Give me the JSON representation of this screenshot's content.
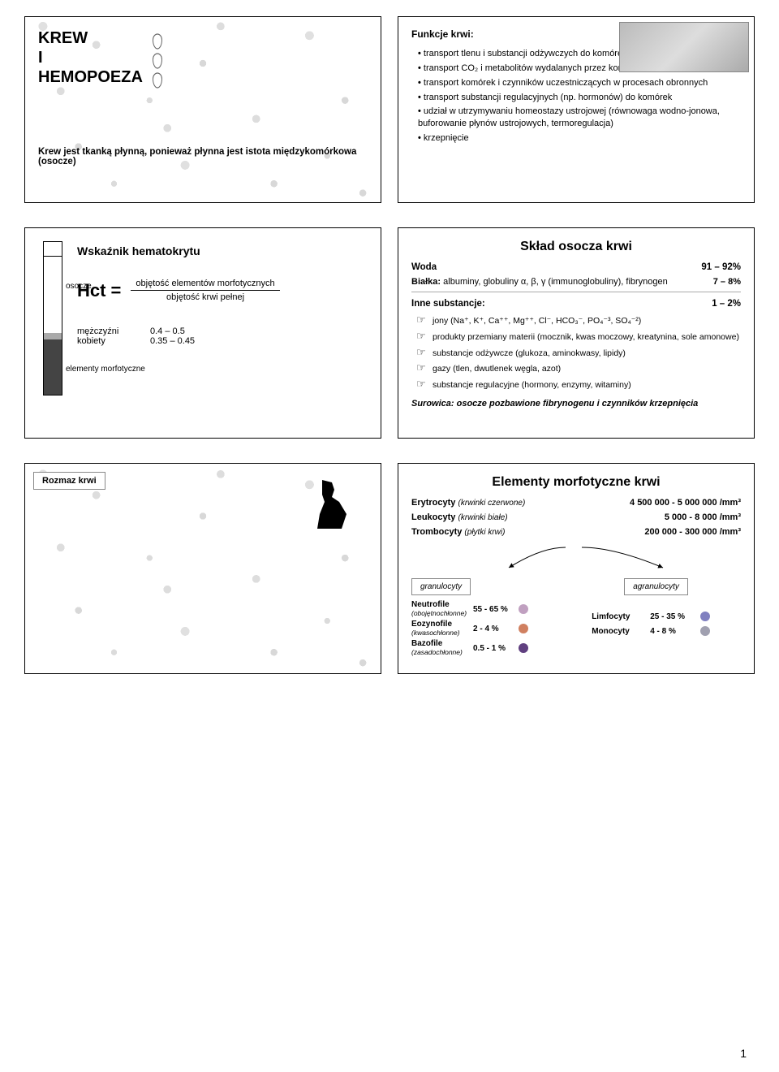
{
  "panel1": {
    "title": "KREW\nI\nHEMOPOEZA",
    "caption": "Krew jest tkanką płynną, ponieważ płynna jest istota międzykomórkowa (osocze)"
  },
  "panel2": {
    "heading": "Funkcje krwi:",
    "items": [
      "transport tlenu i substancji odżywczych do komórek",
      "transport CO₂ i metabolitów wydalanych przez komórki",
      "transport komórek i czynników uczestniczących w procesach obronnych",
      "transport substancji regulacyjnych (np. hormonów) do komórek",
      "udział w utrzymywaniu homeostazy ustrojowej (równowaga wodno-jonowa, buforowanie płynów ustrojowych, termoregulacja)",
      "krzepnięcie"
    ]
  },
  "panel3": {
    "hematocrit_label": "Wskaźnik hematokrytu",
    "osocze": "osocze",
    "hct": "Hct =",
    "numerator": "objętość elementów morfotycznych",
    "denominator": "objętość krwi pełnej",
    "elementy": "elementy morfotyczne",
    "male_label": "mężczyźni",
    "male_val": "0.4 – 0.5",
    "female_label": "kobiety",
    "female_val": "0.35 – 0.45"
  },
  "panel4": {
    "title": "Skład osocza krwi",
    "woda": "Woda",
    "woda_val": "91 – 92%",
    "bialka_label": "Białka:",
    "bialka_text": "albuminy, globuliny α, β, γ (immunoglobuliny), fibrynogen",
    "bialka_val": "7 – 8%",
    "inne_label": "Inne substancje:",
    "inne_val": "1 – 2%",
    "items": [
      "jony (Na⁺, K⁺, Ca⁺⁺, Mg⁺⁺, Cl⁻, HCO₃⁻, PO₄⁻³, SO₄⁻²)",
      "produkty przemiany materii (mocznik, kwas moczowy, kreatynina, sole amonowe)",
      "substancje odżywcze (glukoza, aminokwasy, lipidy)",
      "gazy (tlen, dwutlenek węgla, azot)",
      "substancje regulacyjne (hormony, enzymy, witaminy)"
    ],
    "surowica": "Surowica: osocze pozbawione fibrynogenu i czynników krzepnięcia"
  },
  "panel5": {
    "label": "Rozmaz krwi"
  },
  "panel6": {
    "title": "Elementy morfotyczne krwi",
    "rows": [
      {
        "name": "Erytrocyty",
        "note": "(krwinki czerwone)",
        "val": "4 500 000 - 5 000 000 /mm³"
      },
      {
        "name": "Leukocyty",
        "note": "(krwinki białe)",
        "val": "5 000 - 8 000 /mm³"
      },
      {
        "name": "Trombocyty",
        "note": "(płytki krwi)",
        "val": "200 000 - 300 000 /mm³"
      }
    ],
    "granulocyty": "granulocyty",
    "agranulocyty": "agranulocyty",
    "gran_rows": [
      {
        "name": "Neutrofile",
        "note": "(obojętnochłonne)",
        "val": "55 - 65 %",
        "color": "#c0a0c0"
      },
      {
        "name": "Eozynofile",
        "note": "(kwasochłonne)",
        "val": "2 - 4 %",
        "color": "#d08060"
      },
      {
        "name": "Bazofile",
        "note": "(zasadochłonne)",
        "val": "0.5 - 1 %",
        "color": "#604080"
      }
    ],
    "agran_rows": [
      {
        "name": "Limfocyty",
        "val": "25 - 35 %",
        "color": "#8080c0"
      },
      {
        "name": "Monocyty",
        "val": "4 - 8 %",
        "color": "#a0a0b0"
      }
    ]
  },
  "pagenum": "1"
}
